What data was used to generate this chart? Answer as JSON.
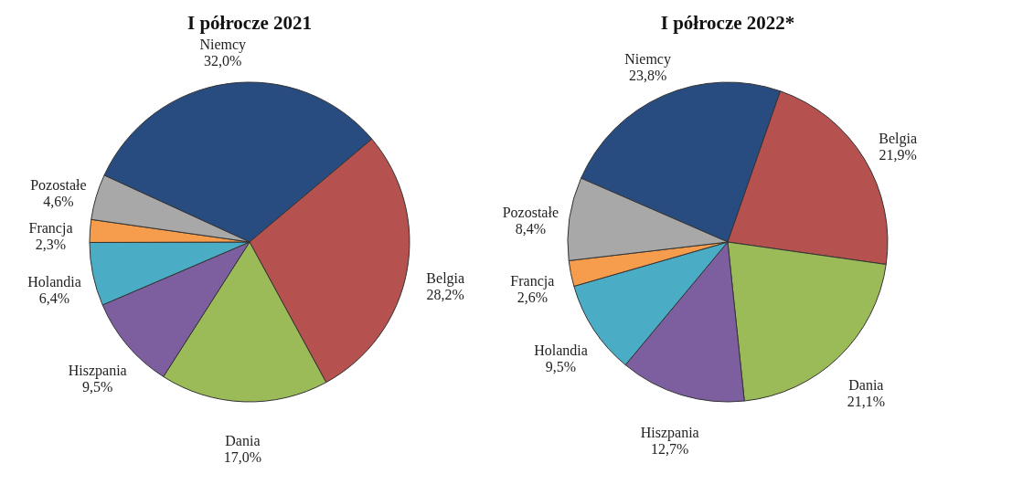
{
  "chart_data": [
    {
      "type": "pie",
      "title": "I półrocze 2021",
      "categories": [
        "Niemcy",
        "Belgia",
        "Dania",
        "Hiszpania",
        "Holandia",
        "Francja",
        "Pozostałe"
      ],
      "values": [
        32.0,
        28.2,
        17.0,
        9.5,
        6.4,
        2.3,
        4.6
      ],
      "value_labels": [
        "32,0%",
        "28,2%",
        "17,0%",
        "9,5%",
        "6,4%",
        "2,3%",
        "4,6%"
      ],
      "colors": [
        "#284c80",
        "#b5514e",
        "#9bbb59",
        "#7d5fa0",
        "#4bacc6",
        "#f59d4c",
        "#a8a8a8"
      ],
      "legend": false
    },
    {
      "type": "pie",
      "title": "I półrocze 2022*",
      "categories": [
        "Niemcy",
        "Belgia",
        "Dania",
        "Hiszpania",
        "Holandia",
        "Francja",
        "Pozostałe"
      ],
      "values": [
        23.8,
        21.9,
        21.1,
        12.7,
        9.5,
        2.6,
        8.4
      ],
      "value_labels": [
        "23,8%",
        "21,9%",
        "21,1%",
        "12,7%",
        "9,5%",
        "2,6%",
        "8,4%"
      ],
      "colors": [
        "#284c80",
        "#b5514e",
        "#9bbb59",
        "#7d5fa0",
        "#4bacc6",
        "#f59d4c",
        "#a8a8a8"
      ],
      "legend": false
    }
  ]
}
